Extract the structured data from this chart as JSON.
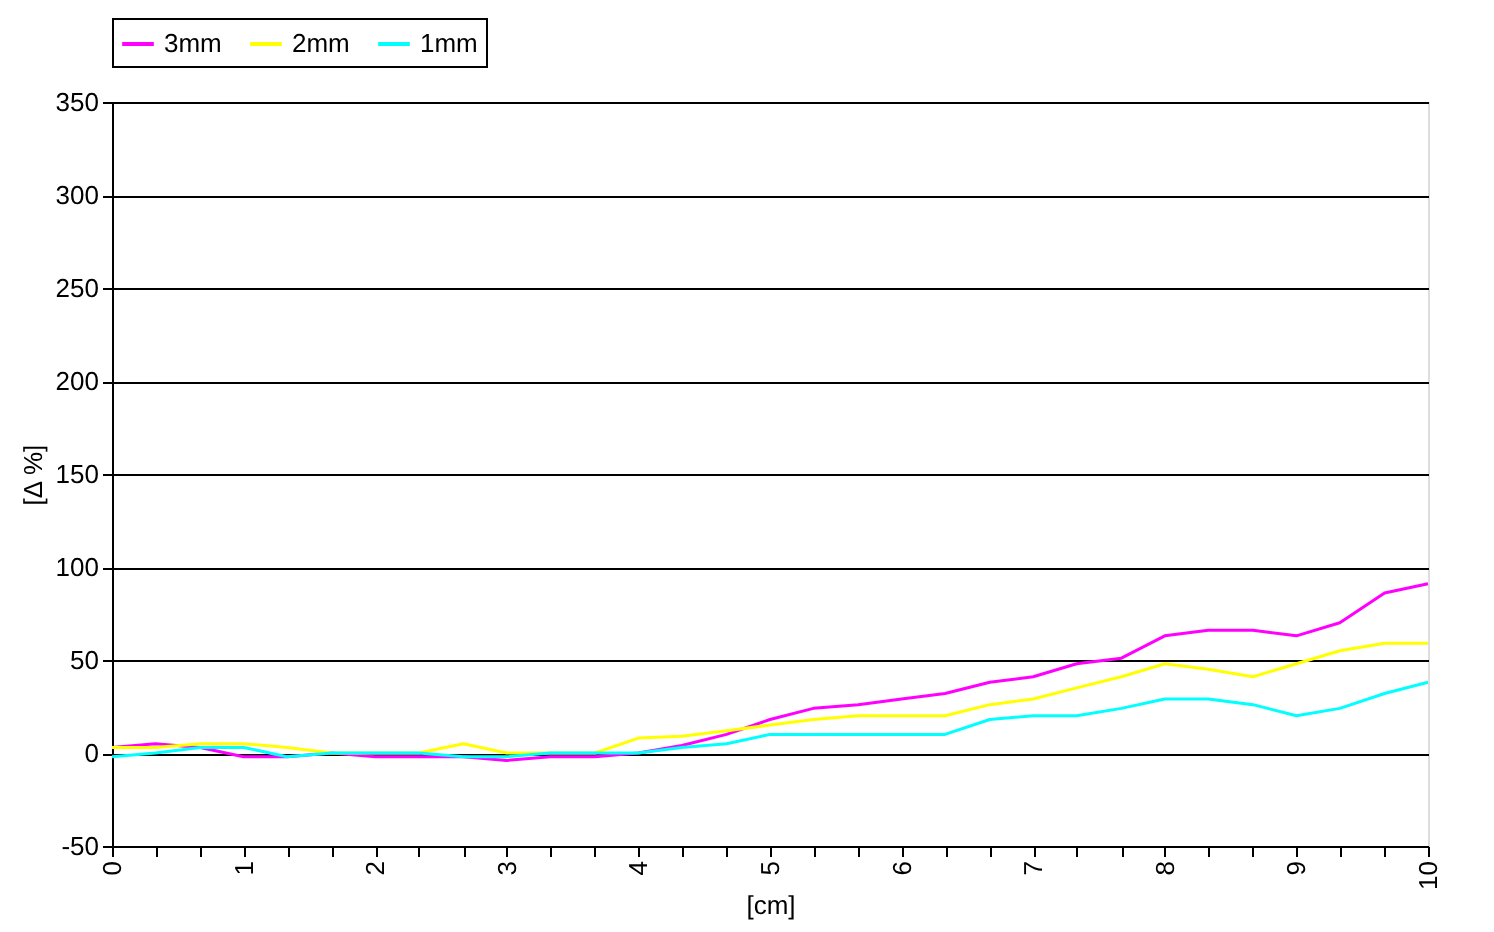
{
  "chart_data": {
    "type": "line",
    "xlabel": "[cm]",
    "ylabel": "[Δ %]",
    "x": [
      0,
      0.33,
      0.67,
      1,
      1.33,
      1.67,
      2,
      2.33,
      2.67,
      3,
      3.33,
      3.67,
      4,
      4.33,
      4.67,
      5,
      5.33,
      5.67,
      6,
      6.33,
      6.67,
      7,
      7.33,
      7.67,
      8,
      8.33,
      8.67,
      9,
      9.33,
      9.67,
      10
    ],
    "series": [
      {
        "name": "3mm",
        "color": "#ff00ff",
        "values": [
          3,
          5,
          3,
          -2,
          -2,
          0,
          -2,
          -2,
          -2,
          -4,
          -2,
          -2,
          0,
          4,
          10,
          18,
          24,
          26,
          29,
          32,
          38,
          41,
          48,
          51,
          63,
          66,
          66,
          63,
          70,
          86,
          91
        ]
      },
      {
        "name": "2mm",
        "color": "#ffff00",
        "values": [
          3,
          3,
          5,
          5,
          3,
          0,
          0,
          0,
          5,
          0,
          0,
          0,
          8,
          9,
          12,
          15,
          18,
          20,
          20,
          20,
          26,
          29,
          35,
          41,
          48,
          45,
          41,
          48,
          55,
          59,
          59
        ]
      },
      {
        "name": "1mm",
        "color": "#00ffff",
        "values": [
          -2,
          0,
          3,
          3,
          -2,
          0,
          0,
          0,
          -2,
          -2,
          0,
          0,
          0,
          3,
          5,
          10,
          10,
          10,
          10,
          10,
          18,
          20,
          20,
          24,
          29,
          29,
          26,
          20,
          24,
          32,
          38
        ]
      }
    ],
    "xlim": [
      0,
      10
    ],
    "xticks": [
      0,
      {
        "value": 0.33,
        "label": null
      },
      {
        "value": 0.67,
        "label": null
      },
      1,
      {
        "value": 1.33,
        "label": null
      },
      {
        "value": 1.67,
        "label": null
      },
      2,
      {
        "value": 2.33,
        "label": null
      },
      {
        "value": 2.67,
        "label": null
      },
      3,
      {
        "value": 3.33,
        "label": null
      },
      {
        "value": 3.67,
        "label": null
      },
      4,
      {
        "value": 4.33,
        "label": null
      },
      {
        "value": 4.67,
        "label": null
      },
      5,
      {
        "value": 5.33,
        "label": null
      },
      {
        "value": 5.67,
        "label": null
      },
      6,
      {
        "value": 6.33,
        "label": null
      },
      {
        "value": 6.67,
        "label": null
      },
      7,
      {
        "value": 7.33,
        "label": null
      },
      {
        "value": 7.67,
        "label": null
      },
      8,
      {
        "value": 8.33,
        "label": null
      },
      {
        "value": 8.67,
        "label": null
      },
      9,
      {
        "value": 9.33,
        "label": null
      },
      {
        "value": 9.67,
        "label": null
      },
      10
    ],
    "ylim": [
      -50,
      350
    ],
    "yticks": [
      -50,
      0,
      50,
      100,
      150,
      200,
      250,
      300,
      350
    ],
    "grid": "y",
    "legend": "top",
    "marker": "none",
    "line_style": "solid"
  }
}
